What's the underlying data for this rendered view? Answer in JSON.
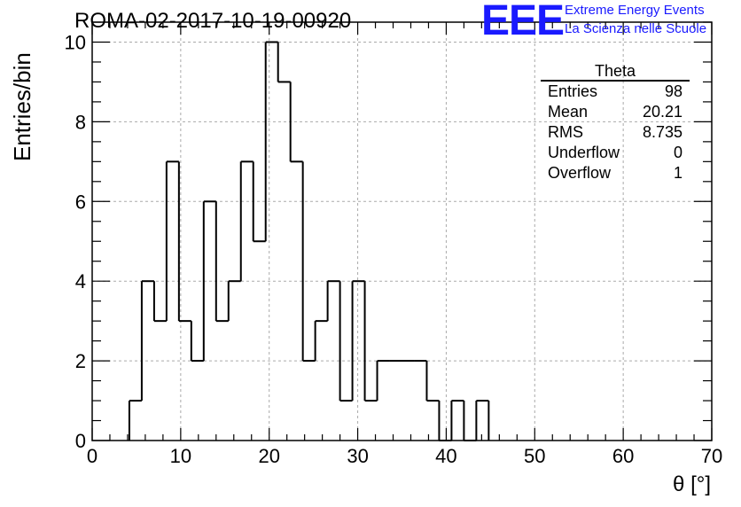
{
  "chart_data": {
    "type": "bar",
    "histogram": true,
    "title": "ROMA-02-2017-10-19-00920",
    "xlabel": "θ [°]",
    "ylabel": "Entries/bin",
    "xlim": [
      0,
      70
    ],
    "ylim": [
      0,
      10.5
    ],
    "grid": true,
    "x_ticks": [
      0,
      10,
      20,
      30,
      40,
      50,
      60,
      70
    ],
    "y_ticks": [
      0,
      2,
      4,
      6,
      8,
      10
    ],
    "bin_edges": [
      4.2,
      5.6,
      7.0,
      8.4,
      9.8,
      11.2,
      12.6,
      14.0,
      15.4,
      16.8,
      18.2,
      19.6,
      21.0,
      22.4,
      23.8,
      25.2,
      26.6,
      28.0,
      29.4,
      30.8,
      32.2,
      33.6,
      35.0,
      36.4,
      37.8,
      39.2,
      40.6,
      42.0,
      43.4,
      44.8
    ],
    "values": [
      1,
      4,
      3,
      7,
      3,
      2,
      6,
      3,
      4,
      7,
      5,
      10,
      9,
      7,
      2,
      3,
      4,
      1,
      4,
      1,
      2,
      2,
      2,
      2,
      1,
      0,
      1,
      0,
      1
    ]
  },
  "stats": {
    "title": "Theta",
    "rows": [
      {
        "label": "Entries",
        "value": "98"
      },
      {
        "label": "Mean",
        "value": "20.21"
      },
      {
        "label": "RMS",
        "value": "8.735"
      },
      {
        "label": "Underflow",
        "value": "0"
      },
      {
        "label": "Overflow",
        "value": "1"
      }
    ]
  },
  "logo": {
    "text": "EEE",
    "line1": "Extreme Energy Events",
    "line2": "La Scienza nelle Scuole",
    "color": "#1a1aff"
  }
}
